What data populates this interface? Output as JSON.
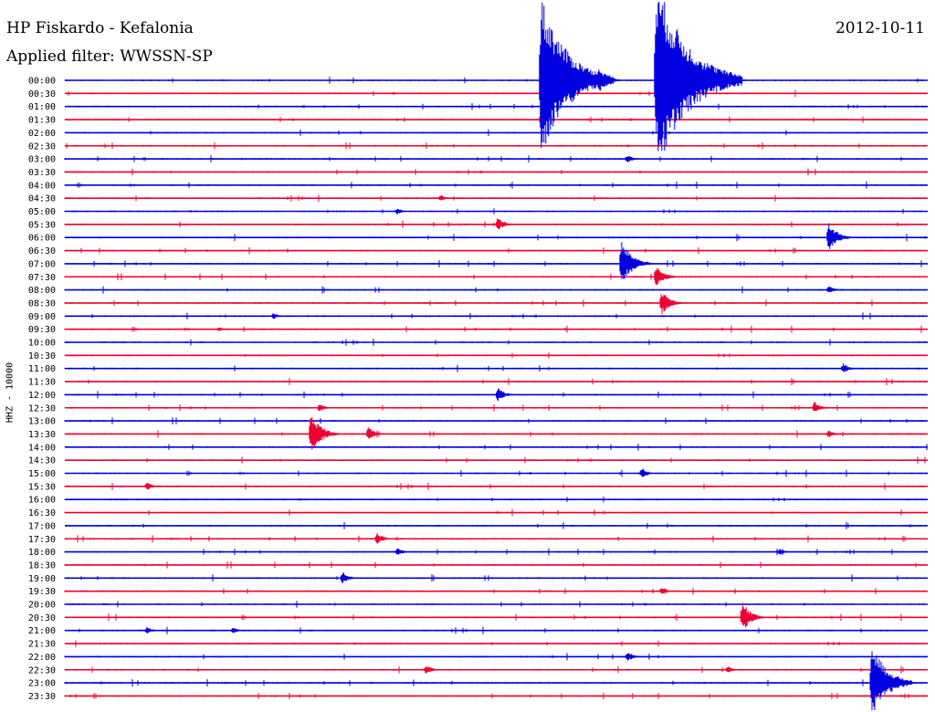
{
  "header": {
    "title": "HP Fiskardo - Kefalonia",
    "date": "2012-10-11",
    "filter": "Applied filter: WWSSN-SP"
  },
  "chart_data": {
    "type": "line",
    "subtype": "helicorder",
    "ylabel": "HHZ - 10000",
    "colors": {
      "odd": "#0000e0",
      "even": "#ee0033"
    },
    "rows": [
      "00:00",
      "00:30",
      "01:00",
      "01:30",
      "02:00",
      "02:30",
      "03:00",
      "03:30",
      "04:00",
      "04:30",
      "05:00",
      "05:30",
      "06:00",
      "06:30",
      "07:00",
      "07:30",
      "08:00",
      "08:30",
      "09:00",
      "09:30",
      "10:00",
      "10:30",
      "11:00",
      "11:30",
      "12:00",
      "12:30",
      "13:00",
      "13:30",
      "14:00",
      "14:30",
      "15:00",
      "15:30",
      "16:00",
      "16:30",
      "17:00",
      "17:30",
      "18:00",
      "18:30",
      "19:00",
      "19:30",
      "20:00",
      "20:30",
      "21:00",
      "21:30",
      "22:00",
      "22:30",
      "23:00",
      "23:30"
    ],
    "events": [
      {
        "row": "00:00",
        "minute": 16.5,
        "amplitude": 7.0
      },
      {
        "row": "00:00",
        "minute": 18.5,
        "amplitude": 1.4
      },
      {
        "row": "00:00",
        "minute": 20.5,
        "amplitude": 8.5
      },
      {
        "row": "03:00",
        "minute": 19.5,
        "amplitude": 0.5
      },
      {
        "row": "04:30",
        "minute": 13.0,
        "amplitude": 0.4
      },
      {
        "row": "05:00",
        "minute": 11.5,
        "amplitude": 0.4
      },
      {
        "row": "05:30",
        "minute": 15.0,
        "amplitude": 0.8
      },
      {
        "row": "06:00",
        "minute": 26.5,
        "amplitude": 1.5
      },
      {
        "row": "07:00",
        "minute": 19.3,
        "amplitude": 2.2
      },
      {
        "row": "07:30",
        "minute": 20.5,
        "amplitude": 1.2
      },
      {
        "row": "08:00",
        "minute": 26.5,
        "amplitude": 0.5
      },
      {
        "row": "08:30",
        "minute": 20.7,
        "amplitude": 1.3
      },
      {
        "row": "09:00",
        "minute": 7.2,
        "amplitude": 0.4
      },
      {
        "row": "09:30",
        "minute": 5.3,
        "amplitude": 0.3
      },
      {
        "row": "11:00",
        "minute": 27.0,
        "amplitude": 0.6
      },
      {
        "row": "12:00",
        "minute": 15.0,
        "amplitude": 0.8
      },
      {
        "row": "12:30",
        "minute": 8.8,
        "amplitude": 0.5
      },
      {
        "row": "12:30",
        "minute": 26.0,
        "amplitude": 0.7
      },
      {
        "row": "13:30",
        "minute": 8.5,
        "amplitude": 2.0
      },
      {
        "row": "13:30",
        "minute": 10.5,
        "amplitude": 0.8
      },
      {
        "row": "13:30",
        "minute": 26.5,
        "amplitude": 0.5
      },
      {
        "row": "15:00",
        "minute": 20.0,
        "amplitude": 0.6
      },
      {
        "row": "15:30",
        "minute": 2.8,
        "amplitude": 0.5
      },
      {
        "row": "17:30",
        "minute": 10.8,
        "amplitude": 0.7
      },
      {
        "row": "18:00",
        "minute": 11.5,
        "amplitude": 0.5
      },
      {
        "row": "18:00",
        "minute": 24.8,
        "amplitude": 0.4
      },
      {
        "row": "19:00",
        "minute": 9.6,
        "amplitude": 0.7
      },
      {
        "row": "19:30",
        "minute": 20.7,
        "amplitude": 0.5
      },
      {
        "row": "20:30",
        "minute": 23.5,
        "amplitude": 1.5
      },
      {
        "row": "21:00",
        "minute": 2.8,
        "amplitude": 0.4
      },
      {
        "row": "21:00",
        "minute": 5.8,
        "amplitude": 0.4
      },
      {
        "row": "22:00",
        "minute": 19.5,
        "amplitude": 0.6
      },
      {
        "row": "22:30",
        "minute": 12.5,
        "amplitude": 0.6
      },
      {
        "row": "22:30",
        "minute": 23.0,
        "amplitude": 0.4
      },
      {
        "row": "23:00",
        "minute": 28.0,
        "amplitude": 3.5
      }
    ]
  }
}
